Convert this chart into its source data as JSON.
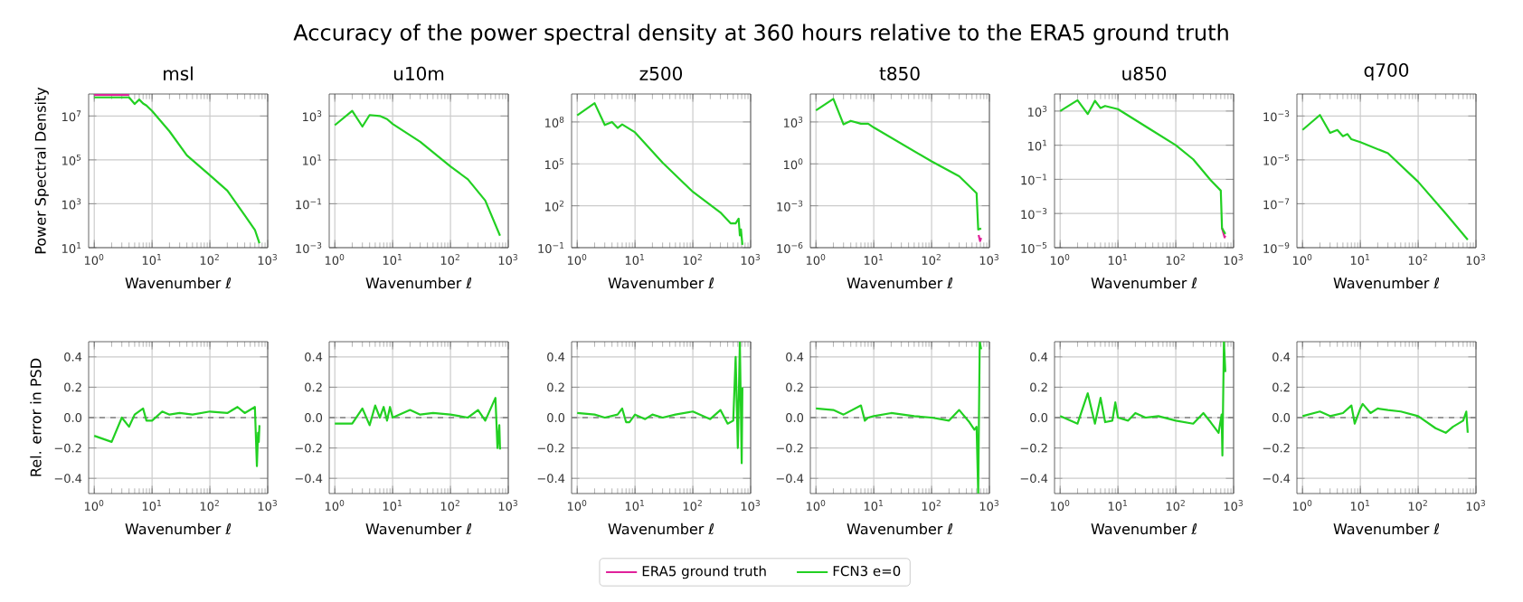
{
  "chart_data": [
    {
      "type": "line",
      "title": "msl",
      "annotations": [
        "Accuracy of the power spectral density at 360 hours relative to the ERA5 ground truth"
      ],
      "xlabel": "Wavenumber ℓ",
      "ylabel": "Power Spectral Density",
      "log": "xy",
      "grid": true,
      "xlim": [
        0.8,
        1000
      ],
      "xticks": [
        {
          "value": 1,
          "label": "10$^{0}$"
        },
        {
          "value": 10,
          "label": "10$^{1}$"
        },
        {
          "value": 100,
          "label": "10$^{2}$"
        },
        {
          "value": 1000,
          "label": "10$^{3}$"
        }
      ],
      "ylim": [
        10,
        100000000.0
      ],
      "yticks": [
        {
          "value": 10,
          "label": "10$^{1}$"
        },
        {
          "value": 1000,
          "label": "10$^{3}$"
        },
        {
          "value": 100000,
          "label": "10$^{5}$"
        },
        {
          "value": 10000000,
          "label": "10$^{7}$"
        }
      ],
      "series": [
        {
          "color": "#e0219a",
          "x": [
            1,
            2,
            4
          ],
          "values": [
            90000000.0,
            90000000.0,
            90000000.0
          ]
        },
        {
          "color": "#22d022",
          "x": [
            1,
            4,
            5,
            6,
            7,
            8,
            10,
            20,
            40,
            100,
            200,
            400,
            600,
            720
          ],
          "values": [
            70000000.0,
            70000000.0,
            35000000.0,
            56000000.0,
            37000000.0,
            30000000.0,
            17000000.0,
            2000000.0,
            160000.0,
            20000.0,
            4000.0,
            300,
            65,
            16
          ]
        }
      ]
    },
    {
      "type": "line",
      "title": "u10m",
      "xlabel": "Wavenumber ℓ",
      "log": "xy",
      "grid": true,
      "xlim": [
        0.8,
        1000
      ],
      "xticks": [
        {
          "value": 1,
          "label": "10$^{0}$"
        },
        {
          "value": 10,
          "label": "10$^{1}$"
        },
        {
          "value": 100,
          "label": "10$^{2}$"
        },
        {
          "value": 1000,
          "label": "10$^{3}$"
        }
      ],
      "ylim": [
        0.001,
        10000
      ],
      "yticks": [
        {
          "value": 0.001,
          "label": "10$^{−3}$"
        },
        {
          "value": 0.1,
          "label": "10$^{−1}$"
        },
        {
          "value": 10,
          "label": "10$^{1}$"
        },
        {
          "value": 1000,
          "label": "10$^{3}$"
        }
      ],
      "series": [
        {
          "color": "#22d022",
          "x": [
            1,
            2,
            3,
            4,
            6,
            8,
            10,
            30,
            100,
            200,
            400,
            720
          ],
          "values": [
            380,
            1700,
            330,
            1100,
            1000,
            720,
            430,
            66,
            5,
            1.3,
            0.14,
            0.0035
          ]
        }
      ]
    },
    {
      "type": "line",
      "title": "z500",
      "xlabel": "Wavenumber ℓ",
      "log": "xy",
      "grid": true,
      "xlim": [
        0.8,
        1000
      ],
      "xticks": [
        {
          "value": 1,
          "label": "10$^{0}$"
        },
        {
          "value": 10,
          "label": "10$^{1}$"
        },
        {
          "value": 100,
          "label": "10$^{2}$"
        },
        {
          "value": 1000,
          "label": "10$^{3}$"
        }
      ],
      "ylim": [
        0.1,
        10000000000.0
      ],
      "yticks": [
        {
          "value": 0.1,
          "label": "10$^{−1}$"
        },
        {
          "value": 100,
          "label": "10$^{2}$"
        },
        {
          "value": 100000,
          "label": "10$^{5}$"
        },
        {
          "value": 100000000,
          "label": "10$^{8}$"
        }
      ],
      "series": [
        {
          "color": "#22d022",
          "x": [
            1,
            2,
            3,
            4,
            5,
            6,
            10,
            30,
            100,
            300,
            450,
            550,
            620,
            650,
            680,
            720
          ],
          "values": [
            300000000.0,
            2200000000.0,
            60000000.0,
            100000000.0,
            37000000.0,
            67000000.0,
            18000000.0,
            120000.0,
            1000,
            33,
            5.5,
            5.5,
            12,
            0.75,
            2,
            0.16
          ]
        }
      ]
    },
    {
      "type": "line",
      "title": "t850",
      "xlabel": "Wavenumber ℓ",
      "log": "xy",
      "grid": true,
      "legend": "bottom",
      "xlim": [
        0.8,
        1000
      ],
      "xticks": [
        {
          "value": 1,
          "label": "10$^{0}$"
        },
        {
          "value": 10,
          "label": "10$^{1}$"
        },
        {
          "value": 100,
          "label": "10$^{2}$"
        },
        {
          "value": 1000,
          "label": "10$^{3}$"
        }
      ],
      "ylim": [
        1e-06,
        100000
      ],
      "yticks": [
        {
          "value": 1e-06,
          "label": "10$^{−6}$"
        },
        {
          "value": 0.001,
          "label": "10$^{−3}$"
        },
        {
          "value": 1,
          "label": "10$^{0}$"
        },
        {
          "value": 1000,
          "label": "10$^{3}$"
        }
      ],
      "series": [
        {
          "name": "ERA5 ground truth",
          "color": "#e0219a",
          "x": [
            650,
            690,
            720
          ],
          "values": [
            8e-06,
            3e-06,
            5e-06
          ]
        },
        {
          "name": "FCN3 e=0",
          "color": "#22d022",
          "x": [
            1,
            2,
            3,
            4,
            6,
            8,
            10,
            100,
            300,
            600,
            640,
            720
          ],
          "values": [
            6800,
            45000,
            670,
            1200,
            740,
            740,
            400,
            1.5,
            0.13,
            0.008,
            2e-05,
            2.4e-05
          ]
        }
      ]
    },
    {
      "type": "line",
      "title": "u850",
      "xlabel": "Wavenumber ℓ",
      "log": "xy",
      "grid": true,
      "xlim": [
        0.8,
        1000
      ],
      "xticks": [
        {
          "value": 1,
          "label": "10$^{0}$"
        },
        {
          "value": 10,
          "label": "10$^{1}$"
        },
        {
          "value": 100,
          "label": "10$^{2}$"
        },
        {
          "value": 1000,
          "label": "10$^{3}$"
        }
      ],
      "ylim": [
        1e-05,
        10000
      ],
      "yticks": [
        {
          "value": 1e-05,
          "label": "10$^{−5}$"
        },
        {
          "value": 0.001,
          "label": "10$^{−3}$"
        },
        {
          "value": 0.1,
          "label": "10$^{−1}$"
        },
        {
          "value": 10,
          "label": "10$^{1}$"
        },
        {
          "value": 1000,
          "label": "10$^{3}$"
        }
      ],
      "series": [
        {
          "color": "#e0219a",
          "x": [
            630,
            700,
            720
          ],
          "values": [
            0.00014,
            4e-05,
            5e-05
          ]
        },
        {
          "color": "#22d022",
          "x": [
            1,
            2,
            3,
            4,
            5,
            6,
            10,
            100,
            200,
            400,
            600,
            630,
            720
          ],
          "values": [
            1000,
            4300,
            670,
            4000,
            1500,
            2000,
            1300,
            10,
            1.5,
            0.09,
            0.022,
            0.00014,
            6.3e-05
          ]
        }
      ]
    },
    {
      "type": "line",
      "title": "q700",
      "xlabel": "Wavenumber ℓ",
      "log": "xy",
      "grid": true,
      "xlim": [
        0.8,
        1000
      ],
      "xticks": [
        {
          "value": 1,
          "label": "10$^{0}$"
        },
        {
          "value": 10,
          "label": "10$^{1}$"
        },
        {
          "value": 100,
          "label": "10$^{2}$"
        },
        {
          "value": 1000,
          "label": "10$^{3}$"
        }
      ],
      "ylim": [
        1e-09,
        0.01
      ],
      "yticks": [
        {
          "value": 1e-09,
          "label": "10$^{−9}$"
        },
        {
          "value": 1e-07,
          "label": "10$^{−7}$"
        },
        {
          "value": 1e-05,
          "label": "10$^{−5}$"
        },
        {
          "value": 0.001,
          "label": "10$^{−3}$"
        }
      ],
      "series": [
        {
          "color": "#22d022",
          "x": [
            1,
            2,
            3,
            4,
            5,
            6,
            7,
            10,
            30,
            100,
            300,
            720
          ],
          "values": [
            0.00023,
            0.0011,
            0.00017,
            0.00023,
            0.00012,
            0.00015,
            8.7e-05,
            6.4e-05,
            2e-05,
            1e-06,
            3.6e-08,
            2.3e-09
          ]
        }
      ]
    },
    {
      "type": "line",
      "xlabel": "Wavenumber ℓ",
      "ylabel": "Rel. error in PSD",
      "log": "x",
      "grid": true,
      "xlim": [
        0.8,
        1000
      ],
      "xticks": [
        {
          "value": 1,
          "label": "10$^{0}$"
        },
        {
          "value": 10,
          "label": "10$^{1}$"
        },
        {
          "value": 100,
          "label": "10$^{2}$"
        },
        {
          "value": 1000,
          "label": "10$^{3}$"
        }
      ],
      "ylim": [
        -0.5,
        0.5
      ],
      "yticks": [
        {
          "value": -0.4,
          "label": "−0.4"
        },
        {
          "value": -0.2,
          "label": "−0.2"
        },
        {
          "value": 0,
          "label": "0.0"
        },
        {
          "value": 0.2,
          "label": "0.2"
        },
        {
          "value": 0.4,
          "label": "0.4"
        }
      ],
      "ref_lines": [
        {
          "axis": "y",
          "value": 0,
          "color": "#808080",
          "line_style": "dashed"
        }
      ],
      "series": [
        {
          "color": "#22d022",
          "x": [
            1,
            2,
            3,
            4,
            5,
            7,
            8,
            10,
            15,
            20,
            30,
            50,
            100,
            200,
            300,
            400,
            600,
            650,
            680,
            700,
            720
          ],
          "values": [
            -0.12,
            -0.16,
            0.0,
            -0.06,
            0.02,
            0.06,
            -0.02,
            -0.02,
            0.04,
            0.02,
            0.03,
            0.02,
            0.04,
            0.03,
            0.07,
            0.03,
            0.07,
            -0.32,
            -0.1,
            -0.16,
            -0.05
          ]
        }
      ]
    },
    {
      "type": "line",
      "xlabel": "Wavenumber ℓ",
      "log": "x",
      "grid": true,
      "xlim": [
        0.8,
        1000
      ],
      "xticks": [
        {
          "value": 1,
          "label": "10$^{0}$"
        },
        {
          "value": 10,
          "label": "10$^{1}$"
        },
        {
          "value": 100,
          "label": "10$^{2}$"
        },
        {
          "value": 1000,
          "label": "10$^{3}$"
        }
      ],
      "ylim": [
        -0.5,
        0.5
      ],
      "yticks": [
        {
          "value": -0.4,
          "label": "−0.4"
        },
        {
          "value": -0.2,
          "label": "−0.2"
        },
        {
          "value": 0,
          "label": "0.0"
        },
        {
          "value": 0.2,
          "label": "0.2"
        },
        {
          "value": 0.4,
          "label": "0.4"
        }
      ],
      "ref_lines": [
        {
          "axis": "y",
          "value": 0,
          "color": "#808080",
          "line_style": "dashed"
        }
      ],
      "series": [
        {
          "color": "#22d022",
          "x": [
            1,
            2,
            3,
            4,
            5,
            6,
            7,
            8,
            9,
            10,
            20,
            30,
            50,
            100,
            200,
            300,
            400,
            600,
            650,
            700,
            720
          ],
          "values": [
            -0.04,
            -0.04,
            0.06,
            -0.05,
            0.08,
            0.0,
            0.07,
            -0.02,
            0.07,
            0.0,
            0.05,
            0.02,
            0.03,
            0.02,
            0.0,
            0.05,
            -0.02,
            0.13,
            -0.2,
            -0.05,
            -0.21
          ]
        }
      ]
    },
    {
      "type": "line",
      "xlabel": "Wavenumber ℓ",
      "log": "x",
      "grid": true,
      "xlim": [
        0.8,
        1000
      ],
      "xticks": [
        {
          "value": 1,
          "label": "10$^{0}$"
        },
        {
          "value": 10,
          "label": "10$^{1}$"
        },
        {
          "value": 100,
          "label": "10$^{2}$"
        },
        {
          "value": 1000,
          "label": "10$^{3}$"
        }
      ],
      "ylim": [
        -0.5,
        0.5
      ],
      "yticks": [
        {
          "value": -0.4,
          "label": "−0.4"
        },
        {
          "value": -0.2,
          "label": "−0.2"
        },
        {
          "value": 0,
          "label": "0.0"
        },
        {
          "value": 0.2,
          "label": "0.2"
        },
        {
          "value": 0.4,
          "label": "0.4"
        }
      ],
      "ref_lines": [
        {
          "axis": "y",
          "value": 0,
          "color": "#808080",
          "line_style": "dashed"
        }
      ],
      "series": [
        {
          "color": "#22d022",
          "x": [
            1,
            2,
            3,
            5,
            6,
            7,
            8,
            10,
            15,
            20,
            30,
            50,
            100,
            200,
            300,
            400,
            500,
            550,
            600,
            650,
            700,
            720
          ],
          "values": [
            0.03,
            0.02,
            0.0,
            0.02,
            0.06,
            -0.03,
            -0.03,
            0.02,
            -0.01,
            0.02,
            0.0,
            0.02,
            0.04,
            -0.01,
            0.05,
            -0.04,
            -0.02,
            0.4,
            -0.2,
            0.5,
            -0.3,
            0.2
          ]
        }
      ]
    },
    {
      "type": "line",
      "xlabel": "Wavenumber ℓ",
      "log": "x",
      "grid": true,
      "xlim": [
        0.8,
        1000
      ],
      "xticks": [
        {
          "value": 1,
          "label": "10$^{0}$"
        },
        {
          "value": 10,
          "label": "10$^{1}$"
        },
        {
          "value": 100,
          "label": "10$^{2}$"
        },
        {
          "value": 1000,
          "label": "10$^{3}$"
        }
      ],
      "ylim": [
        -0.5,
        0.5
      ],
      "yticks": [
        {
          "value": -0.4,
          "label": "−0.4"
        },
        {
          "value": -0.2,
          "label": "−0.2"
        },
        {
          "value": 0,
          "label": "0.0"
        },
        {
          "value": 0.2,
          "label": "0.2"
        },
        {
          "value": 0.4,
          "label": "0.4"
        }
      ],
      "ref_lines": [
        {
          "axis": "y",
          "value": 0,
          "color": "#808080",
          "line_style": "dashed"
        }
      ],
      "series": [
        {
          "color": "#22d022",
          "x": [
            1,
            2,
            3,
            6,
            7,
            8,
            10,
            20,
            50,
            100,
            200,
            300,
            450,
            550,
            600,
            640,
            680,
            720
          ],
          "values": [
            0.06,
            0.05,
            0.02,
            0.08,
            -0.02,
            0.0,
            0.01,
            0.03,
            0.01,
            0.0,
            -0.02,
            0.05,
            -0.03,
            -0.08,
            -0.06,
            -0.5,
            0.5,
            0.45
          ]
        }
      ]
    },
    {
      "type": "line",
      "xlabel": "Wavenumber ℓ",
      "log": "x",
      "grid": true,
      "xlim": [
        0.8,
        1000
      ],
      "xticks": [
        {
          "value": 1,
          "label": "10$^{0}$"
        },
        {
          "value": 10,
          "label": "10$^{1}$"
        },
        {
          "value": 100,
          "label": "10$^{2}$"
        },
        {
          "value": 1000,
          "label": "10$^{3}$"
        }
      ],
      "ylim": [
        -0.5,
        0.5
      ],
      "yticks": [
        {
          "value": -0.4,
          "label": "−0.4"
        },
        {
          "value": -0.2,
          "label": "−0.2"
        },
        {
          "value": 0,
          "label": "0.0"
        },
        {
          "value": 0.2,
          "label": "0.2"
        },
        {
          "value": 0.4,
          "label": "0.4"
        }
      ],
      "ref_lines": [
        {
          "axis": "y",
          "value": 0,
          "color": "#808080",
          "line_style": "dashed"
        }
      ],
      "series": [
        {
          "color": "#22d022",
          "x": [
            1,
            2,
            3,
            4,
            5,
            6,
            8,
            9,
            10,
            15,
            20,
            30,
            50,
            100,
            200,
            300,
            400,
            550,
            620,
            640,
            680,
            720
          ],
          "values": [
            0.01,
            -0.04,
            0.16,
            -0.04,
            0.13,
            -0.03,
            -0.02,
            0.1,
            0.0,
            -0.02,
            0.03,
            0.0,
            0.01,
            -0.02,
            -0.04,
            0.03,
            -0.03,
            -0.1,
            0.02,
            -0.25,
            0.5,
            0.3
          ]
        }
      ]
    },
    {
      "type": "line",
      "xlabel": "Wavenumber ℓ",
      "log": "x",
      "grid": true,
      "xlim": [
        0.8,
        1000
      ],
      "xticks": [
        {
          "value": 1,
          "label": "10$^{0}$"
        },
        {
          "value": 10,
          "label": "10$^{1}$"
        },
        {
          "value": 100,
          "label": "10$^{2}$"
        },
        {
          "value": 1000,
          "label": "10$^{3}$"
        }
      ],
      "ylim": [
        -0.5,
        0.5
      ],
      "yticks": [
        {
          "value": -0.4,
          "label": "−0.4"
        },
        {
          "value": -0.2,
          "label": "−0.2"
        },
        {
          "value": 0,
          "label": "0.0"
        },
        {
          "value": 0.2,
          "label": "0.2"
        },
        {
          "value": 0.4,
          "label": "0.4"
        }
      ],
      "ref_lines": [
        {
          "axis": "y",
          "value": 0,
          "color": "#808080",
          "line_style": "dashed"
        }
      ],
      "series": [
        {
          "color": "#22d022",
          "x": [
            1,
            2,
            3,
            5,
            7,
            8,
            10,
            11,
            15,
            20,
            30,
            50,
            100,
            200,
            300,
            400,
            600,
            680,
            720
          ],
          "values": [
            0.01,
            0.04,
            0.01,
            0.03,
            0.08,
            -0.04,
            0.06,
            0.09,
            0.03,
            0.06,
            0.05,
            0.04,
            0.01,
            -0.07,
            -0.1,
            -0.06,
            -0.02,
            0.04,
            -0.1
          ]
        }
      ]
    }
  ]
}
